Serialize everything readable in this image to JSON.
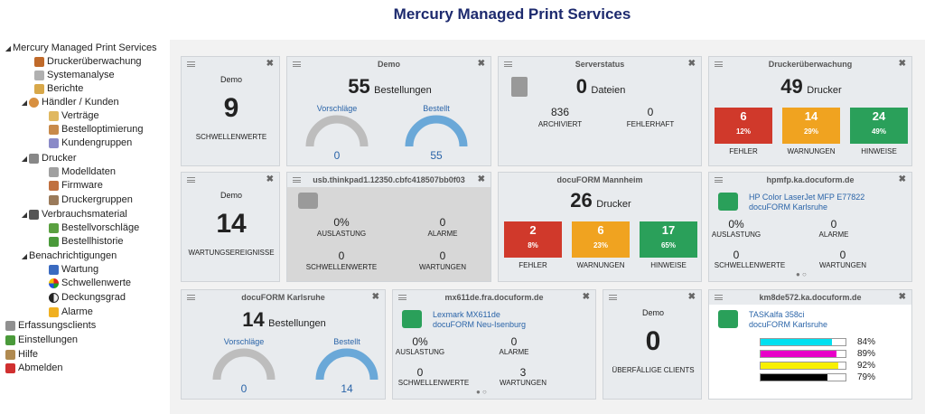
{
  "app_title": "Mercury Managed Print Services",
  "sidebar": {
    "root": "Mercury Managed Print Services",
    "items": [
      {
        "label": "Druckerüberwachung"
      },
      {
        "label": "Systemanalyse"
      },
      {
        "label": "Berichte"
      },
      {
        "label": "Händler / Kunden"
      },
      {
        "label": "Verträge"
      },
      {
        "label": "Bestelloptimierung"
      },
      {
        "label": "Kundengruppen"
      },
      {
        "label": "Drucker"
      },
      {
        "label": "Modelldaten"
      },
      {
        "label": "Firmware"
      },
      {
        "label": "Druckergruppen"
      },
      {
        "label": "Verbrauchsmaterial"
      },
      {
        "label": "Bestellvorschläge"
      },
      {
        "label": "Bestellhistorie"
      },
      {
        "label": "Benachrichtigungen"
      },
      {
        "label": "Wartung"
      },
      {
        "label": "Schwellenwerte"
      },
      {
        "label": "Deckungsgrad"
      },
      {
        "label": "Alarme"
      },
      {
        "label": "Erfassungsclients"
      },
      {
        "label": "Einstellungen"
      },
      {
        "label": "Hilfe"
      },
      {
        "label": "Abmelden"
      }
    ]
  },
  "cards": {
    "c1": {
      "title": "Demo",
      "value": "9",
      "label": "SCHWELLENWERTE"
    },
    "c2": {
      "title": "Demo",
      "value": "55",
      "unit": "Bestellungen",
      "left_label": "Vorschläge",
      "left_value": "0",
      "right_label": "Bestellt",
      "right_value": "55",
      "left_fill": 0,
      "right_fill": 1
    },
    "c3": {
      "title": "Serverstatus",
      "value": "0",
      "unit": "Dateien",
      "a_value": "836",
      "a_label": "ARCHIVIERT",
      "b_value": "0",
      "b_label": "FEHLERHAFT"
    },
    "c4": {
      "title": "Druckerüberwachung",
      "value": "49",
      "unit": "Drucker",
      "boxes": [
        {
          "n": "6",
          "p": "12%",
          "label": "FEHLER",
          "color": "#d0392b"
        },
        {
          "n": "14",
          "p": "29%",
          "label": "WARNUNGEN",
          "color": "#f0a320"
        },
        {
          "n": "24",
          "p": "49%",
          "label": "HINWEISE",
          "color": "#2aa05a"
        }
      ]
    },
    "c5": {
      "title": "Demo",
      "value": "14",
      "label": "WARTUNGSEREIGNISSE"
    },
    "c6": {
      "title": "usb.thinkpad1.12350.cbfc418507bb0f03",
      "auslastung": "0%",
      "auslastung_label": "AUSLASTUNG",
      "alarme": "0",
      "alarme_label": "ALARME",
      "schwellen": "0",
      "schwellen_label": "SCHWELLENWERTE",
      "wartungen": "0",
      "wartungen_label": "WARTUNGEN"
    },
    "c7": {
      "title": "docuFORM Mannheim",
      "value": "26",
      "unit": "Drucker",
      "boxes": [
        {
          "n": "2",
          "p": "8%",
          "label": "FEHLER",
          "color": "#d0392b"
        },
        {
          "n": "6",
          "p": "23%",
          "label": "WARNUNGEN",
          "color": "#f0a320"
        },
        {
          "n": "17",
          "p": "65%",
          "label": "HINWEISE",
          "color": "#2aa05a"
        }
      ]
    },
    "c8": {
      "title": "hpmfp.ka.docuform.de",
      "printer": "HP Color LaserJet MFP E77822",
      "location": "docuFORM Karlsruhe",
      "auslastung": "0%",
      "auslastung_label": "AUSLASTUNG",
      "alarme": "0",
      "alarme_label": "ALARME",
      "schwellen": "0",
      "schwellen_label": "SCHWELLENWERTE",
      "wartungen": "0",
      "wartungen_label": "WARTUNGEN"
    },
    "c9": {
      "title": "docuFORM Karlsruhe",
      "value": "14",
      "unit": "Bestellungen",
      "left_label": "Vorschläge",
      "left_value": "0",
      "right_label": "Bestellt",
      "right_value": "14",
      "left_fill": 0,
      "right_fill": 1
    },
    "c10": {
      "title": "mx611de.fra.docuform.de",
      "printer": "Lexmark MX611de",
      "location": "docuFORM Neu-Isenburg",
      "auslastung": "0%",
      "auslastung_label": "AUSLASTUNG",
      "alarme": "0",
      "alarme_label": "ALARME",
      "schwellen": "0",
      "schwellen_label": "SCHWELLENWERTE",
      "wartungen": "3",
      "wartungen_label": "WARTUNGEN"
    },
    "c11": {
      "title": "Demo",
      "value": "0",
      "label": "ÜBERFÄLLIGE CLIENTS"
    },
    "c12": {
      "title": "km8de572.ka.docuform.de",
      "printer": "TASKalfa 358ci",
      "location": "docuFORM Karlsruhe",
      "toner": [
        {
          "pct": "84%",
          "fill": 0.84,
          "color": "#00e0f0"
        },
        {
          "pct": "89%",
          "fill": 0.89,
          "color": "#e800c8"
        },
        {
          "pct": "92%",
          "fill": 0.92,
          "color": "#f8f000"
        },
        {
          "pct": "79%",
          "fill": 0.79,
          "color": "#000000"
        }
      ]
    }
  },
  "colors": {
    "accent": "#2a64a8",
    "gauge_fill": "#6aa8d8",
    "gauge_empty": "#bdbdbd",
    "printer_green": "#2aa05a"
  }
}
